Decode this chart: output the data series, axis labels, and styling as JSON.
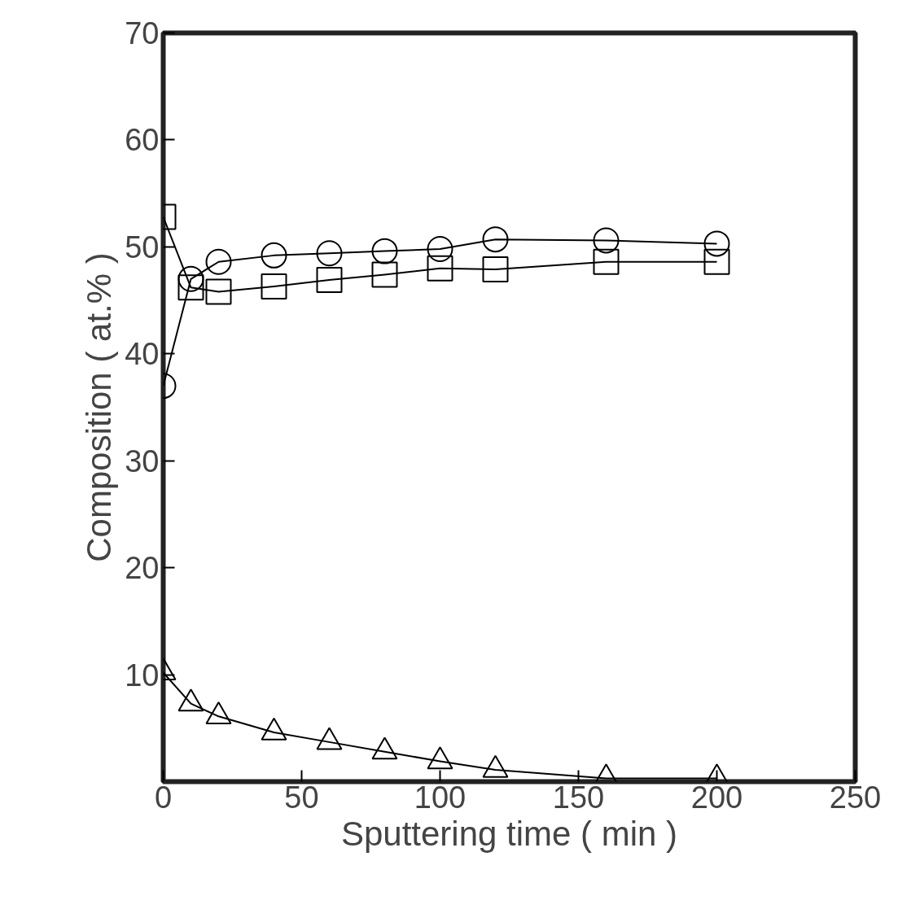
{
  "chart_data": {
    "type": "line",
    "xlabel": "Sputtering time ( min )",
    "ylabel": "Composition ( at.% )",
    "x": [
      0,
      10,
      20,
      40,
      60,
      80,
      100,
      120,
      160,
      200
    ],
    "series": [
      {
        "color": "#000000",
        "marker": "circle",
        "values": [
          37,
          47,
          48.6,
          49.2,
          49.4,
          49.6,
          49.8,
          50.7,
          50.6,
          50.3
        ]
      },
      {
        "color": "#000000",
        "marker": "square",
        "values": [
          52.8,
          46.2,
          45.8,
          46.3,
          46.9,
          47.4,
          48,
          47.9,
          48.6,
          48.6
        ]
      },
      {
        "color": "#000000",
        "marker": "triangle",
        "values": [
          10.2,
          7.3,
          6.1,
          4.6,
          3.7,
          2.8,
          1.9,
          1.1,
          0.3,
          0.3
        ]
      }
    ],
    "xlim": [
      0,
      250
    ],
    "ylim": [
      0,
      70
    ],
    "xticks": [
      0,
      50,
      100,
      150,
      200,
      250
    ],
    "yticks": [
      10,
      20,
      30,
      40,
      50,
      60,
      70
    ],
    "grid": false
  }
}
